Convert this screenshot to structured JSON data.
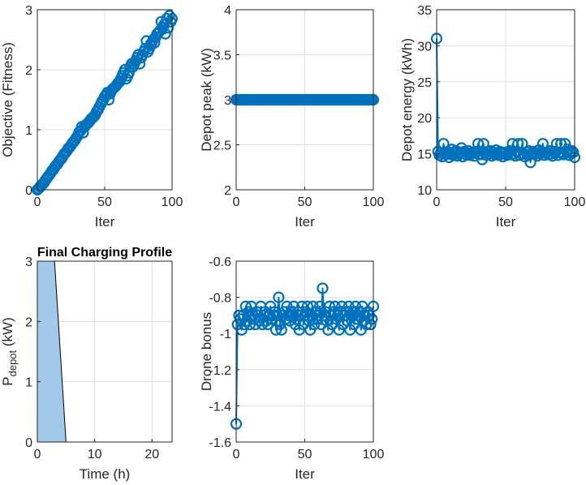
{
  "colors": {
    "series": "#0072BD",
    "area_fill": "#A2C8EA",
    "axis": "#262626",
    "grid": "#DFDFDF"
  },
  "chart_data": [
    {
      "id": "objective",
      "type": "line",
      "marker": "circle",
      "title": "",
      "xlabel": "Iter",
      "ylabel": "Objective (Fitness)",
      "xlim": [
        0,
        100
      ],
      "ylim": [
        0,
        3
      ],
      "xticks": [
        0,
        50,
        100
      ],
      "yticks": [
        0,
        1,
        2,
        3
      ],
      "xticklabels": [
        "0",
        "50",
        "100"
      ],
      "yticklabels": [
        "0",
        "1",
        "2",
        "3"
      ],
      "grid": true,
      "x": [
        0,
        1,
        2,
        3,
        4,
        5,
        6,
        7,
        8,
        9,
        10,
        11,
        12,
        13,
        14,
        15,
        16,
        17,
        18,
        19,
        20,
        21,
        22,
        23,
        24,
        25,
        26,
        27,
        28,
        29,
        30,
        31,
        32,
        33,
        34,
        35,
        36,
        37,
        38,
        39,
        40,
        41,
        42,
        43,
        44,
        45,
        46,
        47,
        48,
        49,
        50,
        51,
        52,
        53,
        54,
        55,
        56,
        57,
        58,
        59,
        60,
        61,
        62,
        63,
        64,
        65,
        66,
        67,
        68,
        69,
        70,
        71,
        72,
        73,
        74,
        75,
        76,
        77,
        78,
        79,
        80,
        81,
        82,
        83,
        84,
        85,
        86,
        87,
        88,
        89,
        90,
        91,
        92,
        93,
        94,
        95,
        96,
        97,
        98,
        99,
        100
      ],
      "y": [
        0.0,
        0.02,
        0.05,
        0.07,
        0.1,
        0.12,
        0.16,
        0.19,
        0.22,
        0.25,
        0.28,
        0.32,
        0.34,
        0.38,
        0.41,
        0.43,
        0.47,
        0.5,
        0.52,
        0.56,
        0.6,
        0.62,
        0.65,
        0.69,
        0.71,
        0.74,
        0.78,
        0.8,
        0.83,
        0.87,
        0.9,
        0.96,
        0.98,
        1.05,
        0.95,
        1.05,
        1.08,
        1.1,
        1.12,
        1.15,
        1.18,
        1.2,
        1.22,
        1.25,
        1.3,
        1.33,
        1.38,
        1.42,
        1.47,
        1.5,
        1.55,
        1.58,
        1.62,
        1.5,
        1.6,
        1.65,
        1.68,
        1.7,
        1.72,
        1.75,
        1.78,
        1.8,
        1.85,
        1.9,
        1.95,
        2.0,
        1.85,
        1.9,
        1.95,
        2.05,
        2.1,
        2.05,
        2.1,
        2.15,
        2.2,
        2.25,
        2.1,
        2.2,
        2.25,
        2.3,
        2.35,
        2.48,
        2.3,
        2.35,
        2.4,
        2.45,
        2.5,
        2.45,
        2.55,
        2.6,
        2.62,
        2.65,
        2.8,
        2.7,
        2.75,
        2.6,
        2.85,
        2.7,
        2.9,
        2.8,
        2.85
      ]
    },
    {
      "id": "depot_peak",
      "type": "line",
      "marker": "circle",
      "title": "",
      "xlabel": "Iter",
      "ylabel": "Depot peak (kW)",
      "xlim": [
        0,
        100
      ],
      "ylim": [
        2,
        4
      ],
      "xticks": [
        0,
        50,
        100
      ],
      "yticks": [
        2,
        2.5,
        3,
        3.5,
        4
      ],
      "xticklabels": [
        "0",
        "50",
        "100"
      ],
      "yticklabels": [
        "2",
        "2.5",
        "3",
        "3.5",
        "4"
      ],
      "grid": true,
      "x": [
        0,
        1,
        2,
        3,
        4,
        5,
        6,
        7,
        8,
        9,
        10,
        11,
        12,
        13,
        14,
        15,
        16,
        17,
        18,
        19,
        20,
        21,
        22,
        23,
        24,
        25,
        26,
        27,
        28,
        29,
        30,
        31,
        32,
        33,
        34,
        35,
        36,
        37,
        38,
        39,
        40,
        41,
        42,
        43,
        44,
        45,
        46,
        47,
        48,
        49,
        50,
        51,
        52,
        53,
        54,
        55,
        56,
        57,
        58,
        59,
        60,
        61,
        62,
        63,
        64,
        65,
        66,
        67,
        68,
        69,
        70,
        71,
        72,
        73,
        74,
        75,
        76,
        77,
        78,
        79,
        80,
        81,
        82,
        83,
        84,
        85,
        86,
        87,
        88,
        89,
        90,
        91,
        92,
        93,
        94,
        95,
        96,
        97,
        98,
        99,
        100
      ],
      "y": [
        3,
        3,
        3,
        3,
        3,
        3,
        3,
        3,
        3,
        3,
        3,
        3,
        3,
        3,
        3,
        3,
        3,
        3,
        3,
        3,
        3,
        3,
        3,
        3,
        3,
        3,
        3,
        3,
        3,
        3,
        3,
        3,
        3,
        3,
        3,
        3,
        3,
        3,
        3,
        3,
        3,
        3,
        3,
        3,
        3,
        3,
        3,
        3,
        3,
        3,
        3,
        3,
        3,
        3,
        3,
        3,
        3,
        3,
        3,
        3,
        3,
        3,
        3,
        3,
        3,
        3,
        3,
        3,
        3,
        3,
        3,
        3,
        3,
        3,
        3,
        3,
        3,
        3,
        3,
        3,
        3,
        3,
        3,
        3,
        3,
        3,
        3,
        3,
        3,
        3,
        3,
        3,
        3,
        3,
        3,
        3,
        3,
        3,
        3,
        3,
        3
      ]
    },
    {
      "id": "depot_energy",
      "type": "line",
      "marker": "circle",
      "title": "",
      "xlabel": "Iter",
      "ylabel": "Depot energy (kWh)",
      "xlim": [
        0,
        100
      ],
      "ylim": [
        10,
        35
      ],
      "xticks": [
        0,
        50,
        100
      ],
      "yticks": [
        10,
        15,
        20,
        25,
        30,
        35
      ],
      "xticklabels": [
        "0",
        "50",
        "100"
      ],
      "yticklabels": [
        "10",
        "15",
        "20",
        "25",
        "30",
        "35"
      ],
      "grid": true,
      "x": [
        0,
        1,
        2,
        3,
        4,
        5,
        6,
        7,
        8,
        9,
        10,
        11,
        12,
        13,
        14,
        15,
        16,
        17,
        18,
        19,
        20,
        21,
        22,
        23,
        24,
        25,
        26,
        27,
        28,
        29,
        30,
        31,
        32,
        33,
        34,
        35,
        36,
        37,
        38,
        39,
        40,
        41,
        42,
        43,
        44,
        45,
        46,
        47,
        48,
        49,
        50,
        51,
        52,
        53,
        54,
        55,
        56,
        57,
        58,
        59,
        60,
        61,
        62,
        63,
        64,
        65,
        66,
        67,
        68,
        69,
        70,
        71,
        72,
        73,
        74,
        75,
        76,
        77,
        78,
        79,
        80,
        81,
        82,
        83,
        84,
        85,
        86,
        87,
        88,
        89,
        90,
        91,
        92,
        93,
        94,
        95,
        96,
        97,
        98,
        99,
        100
      ],
      "y": [
        31,
        15.3,
        14.8,
        15.1,
        14.6,
        16.4,
        15.2,
        14.9,
        15.3,
        14.5,
        15.0,
        15.6,
        14.8,
        15.1,
        15.4,
        14.7,
        15.0,
        15.2,
        15.8,
        14.6,
        15.3,
        14.9,
        15.1,
        15.4,
        14.8,
        15.0,
        15.2,
        14.7,
        15.1,
        15.3,
        16.4,
        14.9,
        15.0,
        14.2,
        16.4,
        15.1,
        14.8,
        15.3,
        15.0,
        15.4,
        14.7,
        15.2,
        14.9,
        15.5,
        15.0,
        14.8,
        15.3,
        15.1,
        14.6,
        15.0,
        15.2,
        14.8,
        15.1,
        15.4,
        14.9,
        16.4,
        15.0,
        14.7,
        15.3,
        16.4,
        14.8,
        15.1,
        16.4,
        15.0,
        14.6,
        15.2,
        14.8,
        15.4,
        13.8,
        15.0,
        15.3,
        14.9,
        15.1,
        14.7,
        15.5,
        15.0,
        15.3,
        16.4,
        14.8,
        15.1,
        15.2,
        14.9,
        15.4,
        15.0,
        14.7,
        15.3,
        15.1,
        16.4,
        14.8,
        15.2,
        16.4,
        15.0,
        14.9,
        16.4,
        15.3,
        15.6,
        14.8,
        15.1,
        15.4,
        15.2,
        14.5
      ]
    },
    {
      "id": "charging_profile",
      "type": "area",
      "title": "Final Charging Profile",
      "xlabel": "Time (h)",
      "ylabel": "P",
      "ylabel_sub": "depot",
      "ylabel_unit": " (kW)",
      "xlim": [
        0,
        23.5
      ],
      "ylim": [
        0,
        3
      ],
      "xticks": [
        0,
        10,
        20
      ],
      "yticks": [
        0,
        1,
        2,
        3
      ],
      "xticklabels": [
        "0",
        "10",
        "20"
      ],
      "yticklabels": [
        "0",
        "1",
        "2",
        "3"
      ],
      "grid": true,
      "x": [
        0,
        3,
        5,
        23.5
      ],
      "y": [
        3,
        3,
        0,
        0
      ]
    },
    {
      "id": "drone_bonus",
      "type": "line",
      "marker": "circle",
      "title": "",
      "xlabel": "Iter",
      "ylabel": "Drone bonus",
      "xlim": [
        0,
        100
      ],
      "ylim": [
        -1.6,
        -0.6
      ],
      "xticks": [
        0,
        50,
        100
      ],
      "yticks": [
        -1.6,
        -1.4,
        -1.2,
        -1,
        -0.8,
        -0.6
      ],
      "xticklabels": [
        "0",
        "50",
        "100"
      ],
      "yticklabels": [
        "-1.6",
        "-1.4",
        "-1.2",
        "-1",
        "-0.8",
        "-0.6"
      ],
      "grid": true,
      "x": [
        0,
        1,
        2,
        3,
        4,
        5,
        6,
        7,
        8,
        9,
        10,
        11,
        12,
        13,
        14,
        15,
        16,
        17,
        18,
        19,
        20,
        21,
        22,
        23,
        24,
        25,
        26,
        27,
        28,
        29,
        30,
        31,
        32,
        33,
        34,
        35,
        36,
        37,
        38,
        39,
        40,
        41,
        42,
        43,
        44,
        45,
        46,
        47,
        48,
        49,
        50,
        51,
        52,
        53,
        54,
        55,
        56,
        57,
        58,
        59,
        60,
        61,
        62,
        63,
        64,
        65,
        66,
        67,
        68,
        69,
        70,
        71,
        72,
        73,
        74,
        75,
        76,
        77,
        78,
        79,
        80,
        81,
        82,
        83,
        84,
        85,
        86,
        87,
        88,
        89,
        90,
        91,
        92,
        93,
        94,
        95,
        96,
        97,
        98,
        99,
        100
      ],
      "y": [
        -1.5,
        -0.95,
        -0.9,
        -0.92,
        -0.98,
        -0.9,
        -0.95,
        -0.85,
        -0.93,
        -0.88,
        -0.95,
        -0.85,
        -0.9,
        -0.92,
        -0.95,
        -0.88,
        -0.9,
        -0.93,
        -0.85,
        -0.95,
        -0.9,
        -0.88,
        -0.93,
        -0.95,
        -0.9,
        -0.85,
        -0.92,
        -0.9,
        -0.88,
        -0.98,
        -0.9,
        -0.8,
        -0.95,
        -0.98,
        -0.9,
        -0.88,
        -0.92,
        -0.85,
        -0.9,
        -0.93,
        -0.88,
        -0.9,
        -0.85,
        -0.95,
        -0.92,
        -0.88,
        -0.98,
        -0.9,
        -0.85,
        -0.95,
        -0.9,
        -0.88,
        -0.85,
        -0.93,
        -0.98,
        -0.9,
        -0.85,
        -0.95,
        -0.88,
        -0.92,
        -0.9,
        -0.85,
        -0.95,
        -0.75,
        -0.9,
        -0.88,
        -0.93,
        -0.98,
        -0.85,
        -0.9,
        -0.95,
        -0.88,
        -0.85,
        -0.92,
        -0.9,
        -0.98,
        -0.88,
        -0.85,
        -0.95,
        -0.9,
        -0.88,
        -0.93,
        -0.85,
        -0.98,
        -0.9,
        -0.88,
        -0.95,
        -0.85,
        -0.92,
        -0.9,
        -0.88,
        -0.98,
        -0.85,
        -0.93,
        -0.9,
        -0.95,
        -0.88,
        -0.9,
        -0.95,
        -0.92,
        -0.85
      ]
    }
  ]
}
